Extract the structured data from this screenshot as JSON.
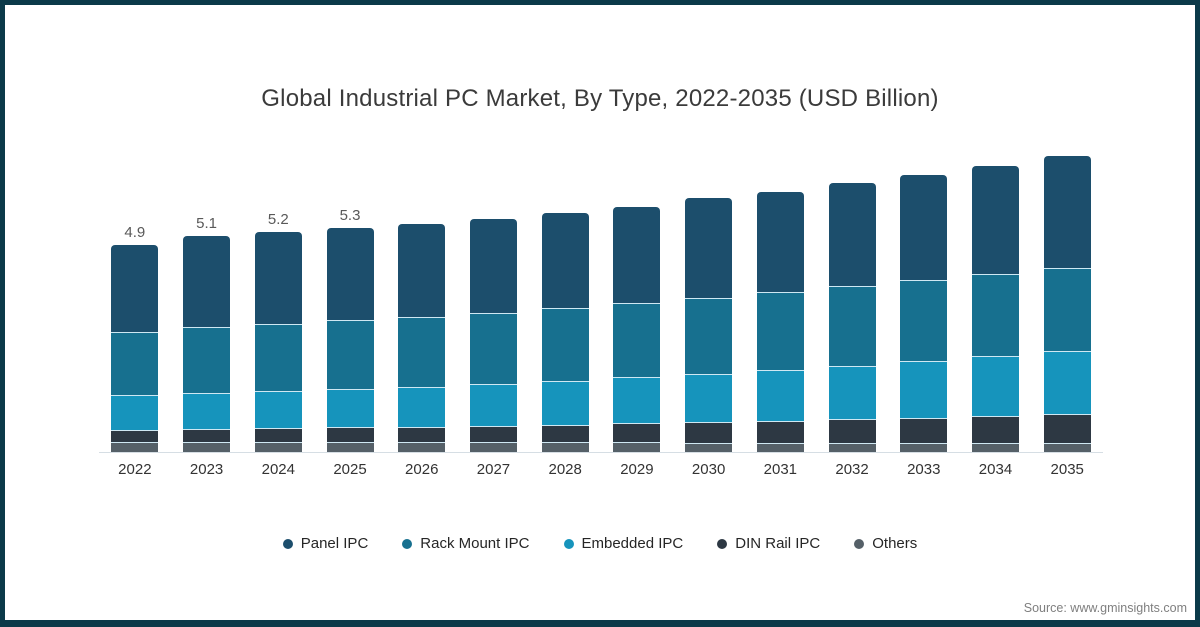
{
  "page": {
    "border_color": "#0b3a49",
    "background_color": "#ffffff"
  },
  "chart_data": {
    "type": "bar",
    "stacked": true,
    "title": "Global Industrial PC Market, By Type, 2022-2035 (USD Billion)",
    "categories": [
      "2022",
      "2023",
      "2024",
      "2025",
      "2026",
      "2027",
      "2028",
      "2029",
      "2030",
      "2031",
      "2032",
      "2033",
      "2034",
      "2035"
    ],
    "series": [
      {
        "name": "Panel IPC",
        "color": "#1c4e6c",
        "values": [
          2.06,
          2.15,
          2.17,
          2.19,
          2.21,
          2.21,
          2.25,
          2.27,
          2.35,
          2.36,
          2.42,
          2.49,
          2.55,
          2.65
        ]
      },
      {
        "name": "Rack Mount IPC",
        "color": "#17708f",
        "values": [
          1.5,
          1.55,
          1.58,
          1.61,
          1.64,
          1.67,
          1.71,
          1.76,
          1.81,
          1.85,
          1.89,
          1.92,
          1.94,
          1.97
        ]
      },
      {
        "name": "Embedded IPC",
        "color": "#1694bc",
        "values": [
          0.82,
          0.86,
          0.89,
          0.92,
          0.96,
          1.0,
          1.04,
          1.09,
          1.14,
          1.2,
          1.26,
          1.33,
          1.4,
          1.48
        ]
      },
      {
        "name": "DIN Rail IPC",
        "color": "#2d3843",
        "values": [
          0.28,
          0.3,
          0.32,
          0.34,
          0.36,
          0.39,
          0.42,
          0.45,
          0.48,
          0.52,
          0.56,
          0.6,
          0.65,
          0.69
        ]
      },
      {
        "name": "Others",
        "color": "#556068",
        "values": [
          0.24,
          0.24,
          0.24,
          0.24,
          0.23,
          0.23,
          0.23,
          0.23,
          0.22,
          0.22,
          0.22,
          0.21,
          0.21,
          0.21
        ]
      }
    ],
    "bar_total_labels": [
      "4.9",
      "5.1",
      "5.2",
      "5.3",
      "",
      "",
      "",
      "",
      "",
      "",
      "",
      "",
      "",
      ""
    ],
    "totals": [
      4.9,
      5.1,
      5.2,
      5.3,
      5.4,
      5.5,
      5.65,
      5.8,
      6.0,
      6.15,
      6.35,
      6.55,
      6.75,
      7.0
    ],
    "ylim": [
      0,
      7.5
    ],
    "grid": false,
    "legend_position": "bottom",
    "stack_order_bottom_to_top": [
      "Others",
      "DIN Rail IPC",
      "Embedded IPC",
      "Rack Mount IPC",
      "Panel IPC"
    ]
  },
  "source": {
    "text": "Source: www.gminsights.com"
  }
}
